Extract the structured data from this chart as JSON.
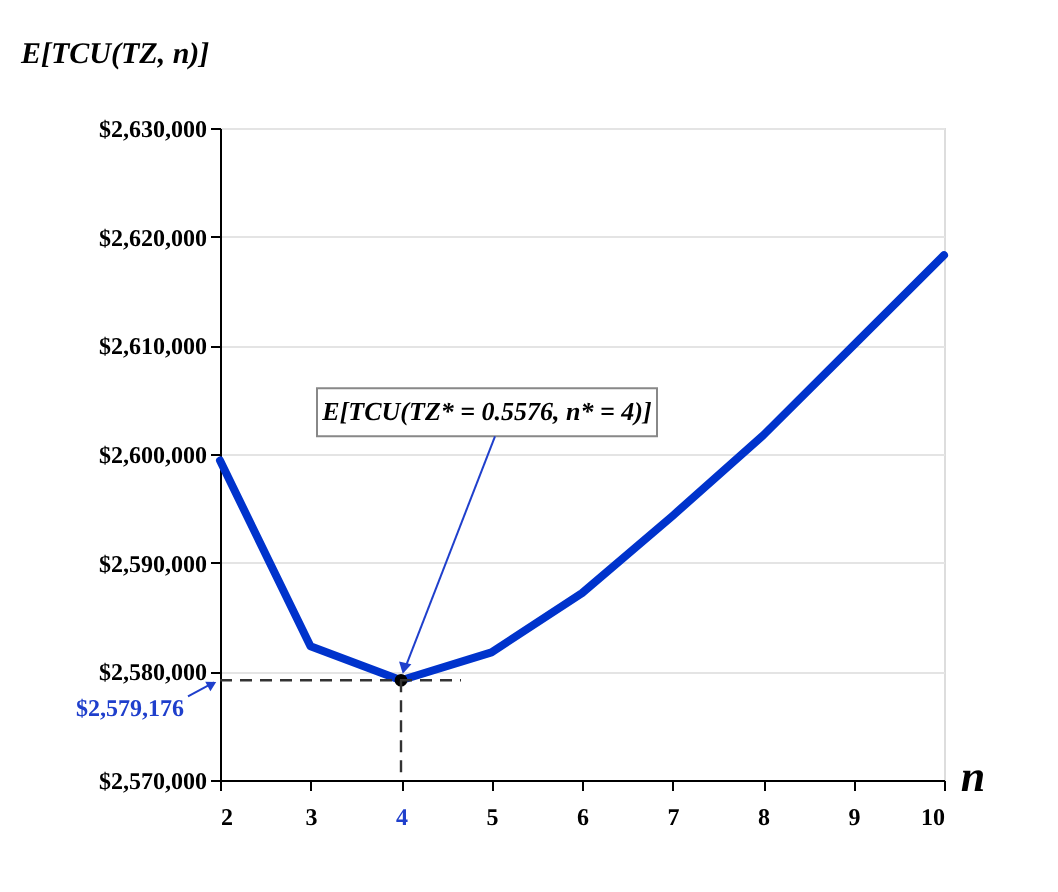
{
  "chart_data": {
    "type": "line",
    "xlabel": "n",
    "ylabel": "E[TCU(TZ, n)]",
    "x": [
      2,
      3,
      4,
      5,
      6,
      7,
      8,
      9,
      10
    ],
    "series": [
      {
        "color": "#0033cc",
        "values": [
          2599400,
          2582300,
          2579176,
          2581750,
          2587200,
          2594300,
          2601700,
          2610000,
          2618300
        ]
      },
      {
        "type": "scatter",
        "marker": "circle",
        "color": "#000000",
        "x": [
          4
        ],
        "values": [
          2579176
        ]
      }
    ],
    "xlim": [
      2,
      10
    ],
    "xticks": [
      2,
      3,
      4,
      5,
      6,
      7,
      8,
      9,
      10
    ],
    "ylim": [
      2570000,
      2630000
    ],
    "yticks": [
      {
        "value": 2570000,
        "label": "$2,570,000"
      },
      {
        "value": 2580000,
        "label": "$2,580,000"
      },
      {
        "value": 2590000,
        "label": "$2,590,000"
      },
      {
        "value": 2600000,
        "label": "$2,600,000"
      },
      {
        "value": 2610000,
        "label": "$2,610,000"
      },
      {
        "value": 2620000,
        "label": "$2,620,000"
      },
      {
        "value": 2630000,
        "label": "$2,630,000"
      }
    ],
    "grid": "y",
    "ref_lines": [
      {
        "axis": "y",
        "value": 2579176,
        "label": "$2,579,176",
        "color": "#333333",
        "line_style": "dashed"
      },
      {
        "axis": "x",
        "value": 4,
        "color": "#333333",
        "line_style": "dashed"
      }
    ],
    "annotations": [
      {
        "text": "E[TCU(TZ* = 0.5576, n* = 4)]",
        "x": 4,
        "y": 2579176
      }
    ]
  }
}
